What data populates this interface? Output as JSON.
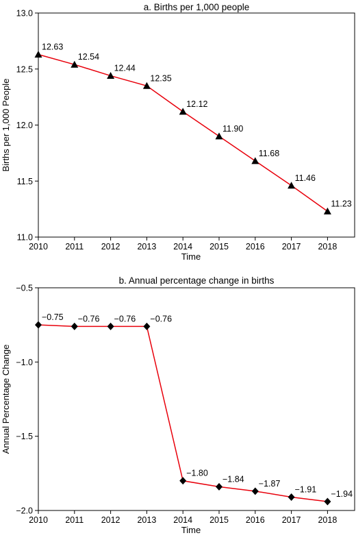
{
  "chart_data": [
    {
      "type": "line",
      "title": "a. Births per 1,000 people",
      "xlabel": "Time",
      "ylabel": "Births per 1,000 People",
      "x": [
        2010,
        2011,
        2012,
        2013,
        2014,
        2015,
        2016,
        2017,
        2018
      ],
      "values": [
        12.63,
        12.54,
        12.44,
        12.35,
        12.12,
        11.9,
        11.68,
        11.46,
        11.23
      ],
      "value_labels": [
        "12.63",
        "12.54",
        "12.44",
        "12.35",
        "12.12",
        "11.90",
        "11.68",
        "11.46",
        "11.23"
      ],
      "xlim": [
        2010,
        2018.75
      ],
      "ylim": [
        11.0,
        13.0
      ],
      "xticks": [
        2010,
        2011,
        2012,
        2013,
        2014,
        2015,
        2016,
        2017,
        2018
      ],
      "yticks": [
        11.0,
        11.5,
        12.0,
        12.5,
        13.0
      ],
      "ytick_labels": [
        "11.0",
        "11.5",
        "12.0",
        "12.5",
        "13.0"
      ],
      "marker": "triangle",
      "line_color": "#e8000b",
      "marker_color": "#000000",
      "grid": false
    },
    {
      "type": "line",
      "title": "b. Annual percentage change in births",
      "xlabel": "Time",
      "ylabel": "Annual Percentage Change",
      "x": [
        2010,
        2011,
        2012,
        2013,
        2014,
        2015,
        2016,
        2017,
        2018
      ],
      "values": [
        -0.75,
        -0.76,
        -0.76,
        -0.76,
        -1.8,
        -1.84,
        -1.87,
        -1.91,
        -1.94
      ],
      "value_labels": [
        "−0.75",
        "−0.76",
        "−0.76",
        "−0.76",
        "−1.80",
        "−1.84",
        "−1.87",
        "−1.91",
        "−1.94"
      ],
      "xlim": [
        2010,
        2018.75
      ],
      "ylim": [
        -2.0,
        -0.5
      ],
      "xticks": [
        2010,
        2011,
        2012,
        2013,
        2014,
        2015,
        2016,
        2017,
        2018
      ],
      "yticks": [
        -2.0,
        -1.5,
        -1.0,
        -0.5
      ],
      "ytick_labels": [
        "−2.0",
        "−1.5",
        "−1.0",
        "−0.5"
      ],
      "marker": "diamond",
      "line_color": "#e8000b",
      "marker_color": "#000000",
      "grid": false
    }
  ]
}
